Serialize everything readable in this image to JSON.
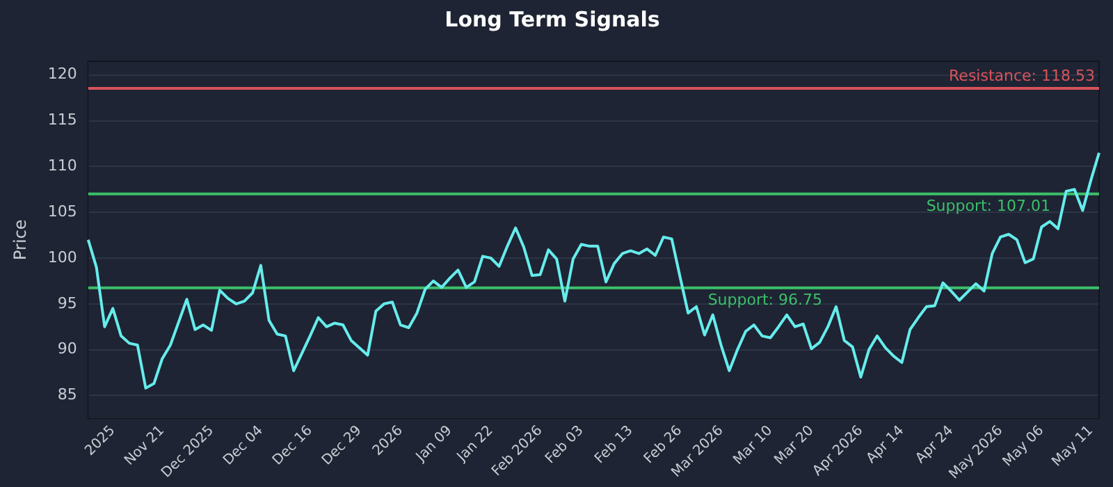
{
  "chart_data": {
    "type": "line",
    "title": "Long Term Signals",
    "ylabel": "Price",
    "categories": [
      null,
      null,
      null,
      "2025",
      null,
      null,
      null,
      null,
      null,
      "Nov 21",
      null,
      null,
      null,
      null,
      null,
      "Dec 2025",
      null,
      null,
      null,
      null,
      null,
      "Dec 04",
      null,
      null,
      null,
      null,
      null,
      "Dec 16",
      null,
      null,
      null,
      null,
      null,
      "Dec 29",
      null,
      null,
      null,
      null,
      "2026",
      null,
      null,
      null,
      null,
      null,
      "Jan 09",
      null,
      null,
      null,
      null,
      "Jan 22",
      null,
      null,
      null,
      null,
      null,
      "Feb 2026",
      null,
      null,
      null,
      null,
      "Feb 03",
      null,
      null,
      null,
      null,
      null,
      "Feb 13",
      null,
      null,
      null,
      null,
      null,
      "Feb 26",
      null,
      null,
      null,
      null,
      "Mar 2026",
      null,
      null,
      null,
      null,
      null,
      "Mar 10",
      null,
      null,
      null,
      null,
      "Mar 20",
      null,
      null,
      null,
      null,
      null,
      "Apr 2026",
      null,
      null,
      null,
      null,
      "Apr 14",
      null,
      null,
      null,
      null,
      null,
      "Apr 24",
      null,
      null,
      null,
      null,
      null,
      "May 2026",
      null,
      null,
      null,
      null,
      "May 06",
      null,
      null,
      null,
      null,
      null,
      "May 11",
      null
    ],
    "series": [
      {
        "color": "#66ecec",
        "values": [
          102,
          99,
          92.5,
          94.5,
          91.5,
          90.7,
          90.5,
          85.8,
          86.3,
          89,
          90.5,
          93,
          95.5,
          92.2,
          92.7,
          92.1,
          96.5,
          95.6,
          95,
          95.3,
          96.2,
          99.2,
          93.2,
          91.7,
          91.5,
          87.7,
          89.6,
          91.5,
          93.5,
          92.5,
          92.9,
          92.7,
          91,
          90.2,
          89.4,
          94.2,
          95,
          95.2,
          92.7,
          92.4,
          94,
          96.6,
          97.5,
          96.8,
          97.8,
          98.7,
          96.8,
          97.4,
          100.2,
          100,
          99.1,
          101.3,
          103.3,
          101.2,
          98.1,
          98.2,
          100.9,
          99.9,
          95.3,
          99.9,
          101.5,
          101.3,
          101.3,
          97.4,
          99.4,
          100.5,
          100.8,
          100.5,
          101,
          100.3,
          102.3,
          102.1,
          98,
          94,
          94.7,
          91.6,
          93.8,
          90.5,
          87.7,
          90,
          92,
          92.7,
          91.5,
          91.3,
          92.5,
          93.8,
          92.5,
          92.8,
          90.1,
          90.8,
          92.5,
          94.7,
          91,
          90.3,
          87,
          90,
          91.5,
          90.2,
          89.3,
          88.6,
          92.2,
          93.5,
          94.7,
          94.8,
          97.3,
          96.4,
          95.4,
          96.3,
          97.2,
          96.4,
          100.5,
          102.3,
          102.6,
          102,
          99.5,
          99.9,
          103.4,
          104,
          103.2,
          107.3,
          107.5,
          105.2,
          108.5,
          111.5
        ]
      }
    ],
    "ylim": [
      82.5,
      121.5
    ],
    "yticks": [
      85,
      90,
      95,
      100,
      105,
      110,
      115,
      120
    ],
    "grid": "y",
    "legend": false,
    "marker": "none",
    "line_style": "solid",
    "ref_lines": [
      {
        "axis": "y",
        "value": 118.53,
        "label": "Resistance: 118.53",
        "color": "#d9535b"
      },
      {
        "axis": "y",
        "value": 107.01,
        "label": "Support: 107.01",
        "color": "#3cbf6a"
      },
      {
        "axis": "y",
        "value": 96.75,
        "label": "Support: 96.75",
        "color": "#3cbf6a"
      }
    ]
  }
}
